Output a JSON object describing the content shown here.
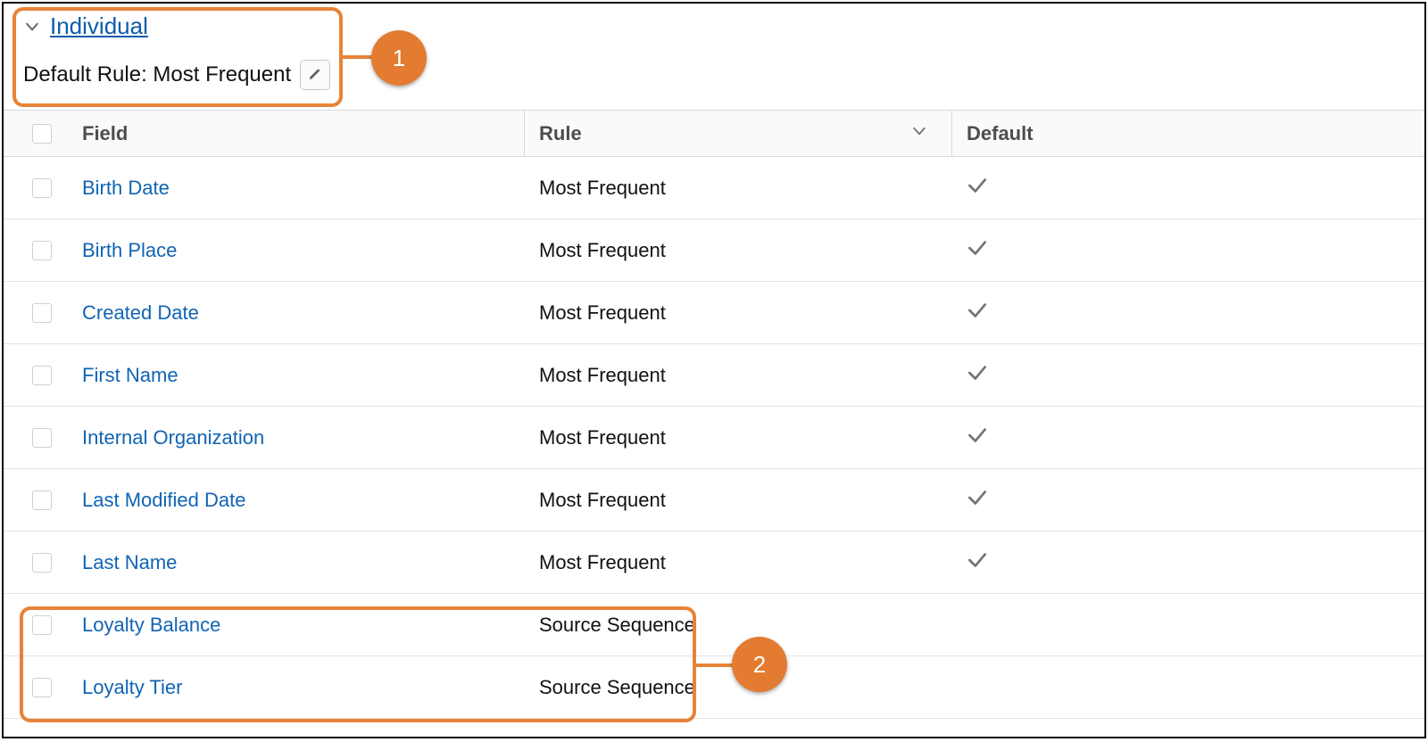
{
  "colors": {
    "link": "#1064b4",
    "header_link": "#0b5cab",
    "callout_border": "#e78338",
    "callout_fill": "#e37c30",
    "border": "#d8d8d8",
    "row_border": "#e2e2e2",
    "icon_gray": "#757575",
    "header_bg": "#fafafa",
    "text_dark": "#111111",
    "text_muted": "#4d4d4d"
  },
  "header": {
    "section_title": "Individual",
    "default_rule_label": "Default Rule: Most Frequent"
  },
  "callouts": {
    "c1": "1",
    "c2": "2"
  },
  "columns": {
    "field": "Field",
    "rule": "Rule",
    "default": "Default"
  },
  "rows": [
    {
      "field": "Birth Date",
      "rule": "Most Frequent",
      "is_default": true
    },
    {
      "field": "Birth Place",
      "rule": "Most Frequent",
      "is_default": true
    },
    {
      "field": "Created Date",
      "rule": "Most Frequent",
      "is_default": true
    },
    {
      "field": "First Name",
      "rule": "Most Frequent",
      "is_default": true
    },
    {
      "field": "Internal Organization",
      "rule": "Most Frequent",
      "is_default": true
    },
    {
      "field": "Last Modified Date",
      "rule": "Most Frequent",
      "is_default": true
    },
    {
      "field": "Last Name",
      "rule": "Most Frequent",
      "is_default": true
    },
    {
      "field": "Loyalty Balance",
      "rule": "Source Sequence",
      "is_default": false
    },
    {
      "field": "Loyalty Tier",
      "rule": "Source Sequence",
      "is_default": false
    }
  ]
}
